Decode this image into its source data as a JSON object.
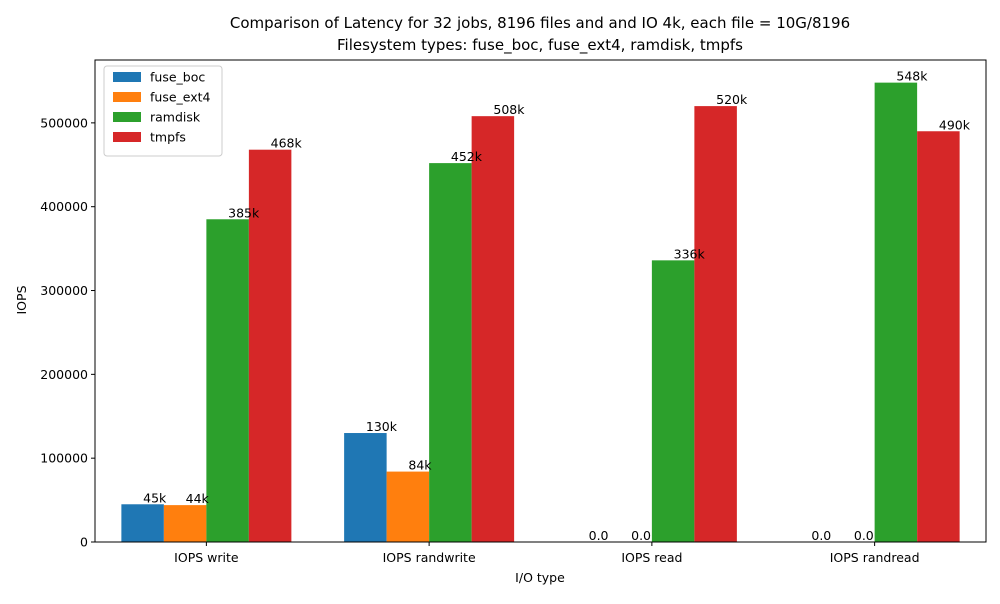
{
  "chart_data": {
    "type": "bar",
    "title_line1": "Comparison of Latency for 32 jobs, 8196 files and  and IO 4k, each file = 10G/8196",
    "title_line2": "Filesystem types: fuse_boc, fuse_ext4, ramdisk, tmpfs",
    "xlabel": "I/O type",
    "ylabel": "IOPS",
    "ylim": [
      0,
      575000
    ],
    "yticks": [
      0,
      100000,
      200000,
      300000,
      400000,
      500000
    ],
    "categories": [
      "IOPS write",
      "IOPS randwrite",
      "IOPS read",
      "IOPS randread"
    ],
    "legend_position": "upper-left",
    "grid": false,
    "series": [
      {
        "name": "fuse_boc",
        "color": "#1f77b4",
        "values": [
          45000,
          130000,
          0,
          0
        ],
        "labels": [
          "45k",
          "130k",
          "0.0",
          "0.0"
        ]
      },
      {
        "name": "fuse_ext4",
        "color": "#ff7f0e",
        "values": [
          44000,
          84000,
          0,
          0
        ],
        "labels": [
          "44k",
          "84k",
          "0.0",
          "0.0"
        ]
      },
      {
        "name": "ramdisk",
        "color": "#2ca02c",
        "values": [
          385000,
          452000,
          336000,
          548000
        ],
        "labels": [
          "385k",
          "452k",
          "336k",
          "548k"
        ]
      },
      {
        "name": "tmpfs",
        "color": "#d62728",
        "values": [
          468000,
          508000,
          520000,
          490000
        ],
        "labels": [
          "468k",
          "508k",
          "520k",
          "490k"
        ]
      }
    ]
  }
}
